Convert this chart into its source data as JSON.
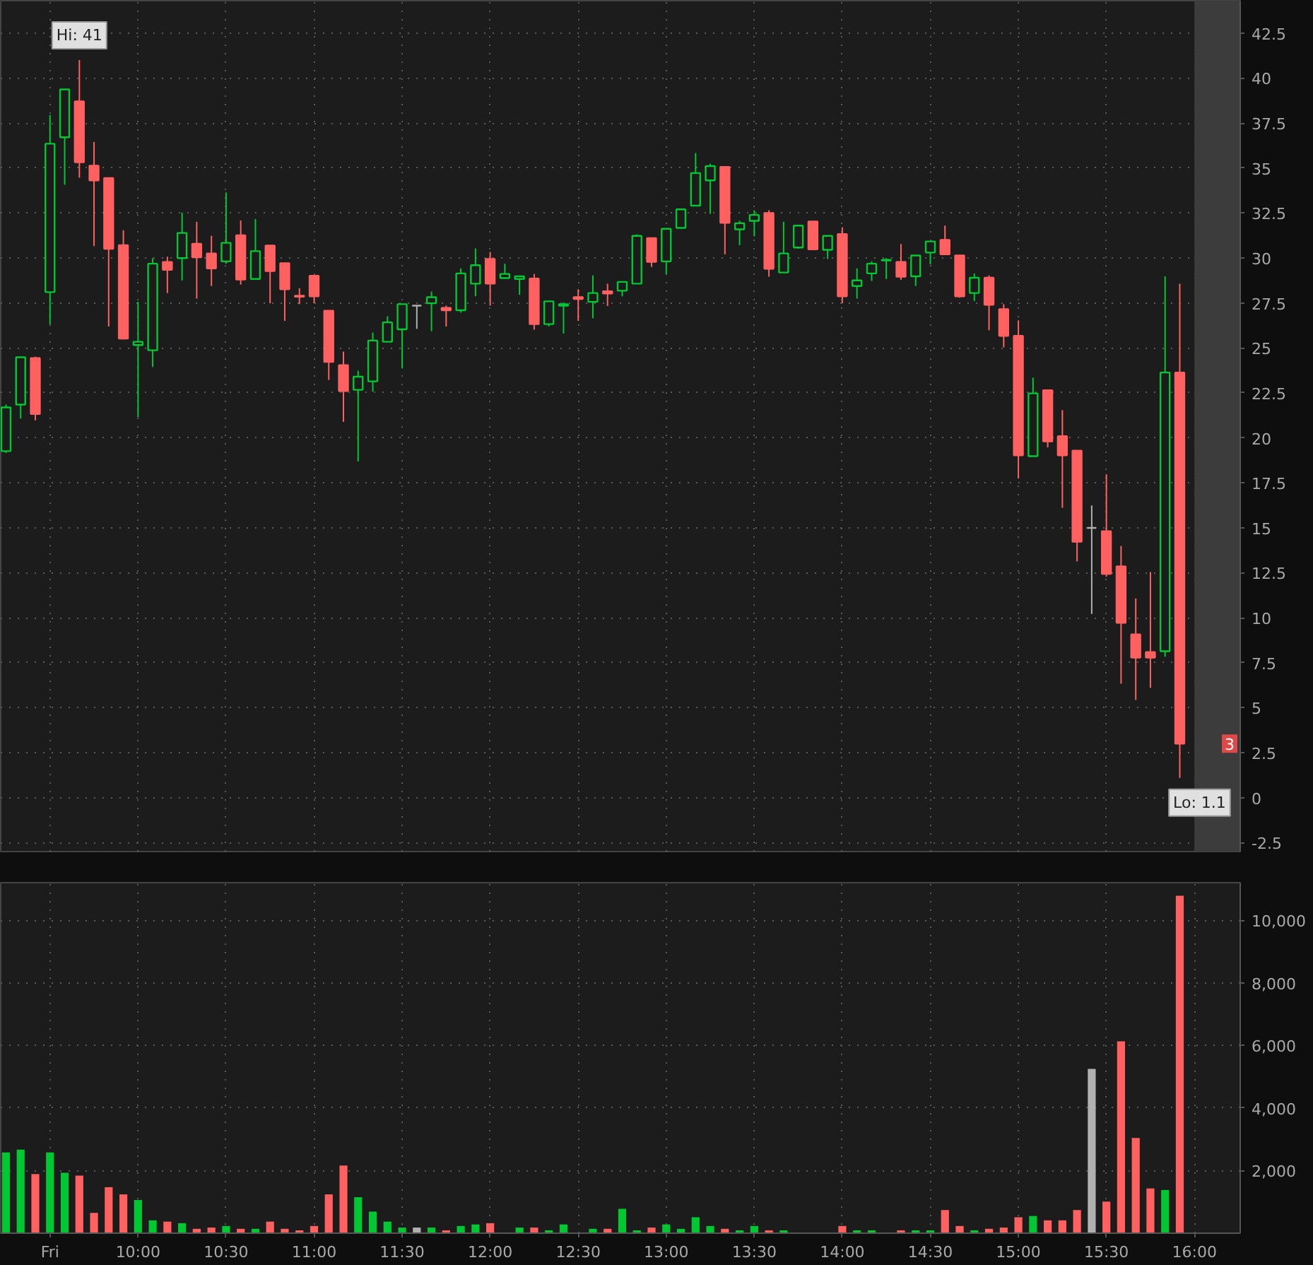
{
  "chart_data": [
    {
      "type": "candlestick",
      "x": [
        9.25,
        9.3333,
        9.4167,
        9.5,
        9.5833,
        9.6667,
        9.75,
        9.8333,
        9.9167,
        10,
        10.0833,
        10.1667,
        10.25,
        10.3333,
        10.4167,
        10.5,
        10.5833,
        10.6667,
        10.75,
        10.8333,
        10.9167,
        11,
        11.0833,
        11.1667,
        11.25,
        11.3333,
        11.4167,
        11.5,
        11.5833,
        11.6667,
        11.75,
        11.8333,
        11.9167,
        12,
        12.0833,
        12.1667,
        12.25,
        12.3333,
        12.4167,
        12.5,
        12.5833,
        12.6667,
        12.75,
        12.8333,
        12.9167,
        13,
        13.0833,
        13.1667,
        13.25,
        13.3333,
        13.4167,
        13.5,
        13.5833,
        13.6667,
        13.75,
        13.8333,
        13.9167,
        14,
        14.0833,
        14.1667,
        14.25,
        14.3333,
        14.4167,
        14.5,
        14.5833,
        14.6667,
        14.75,
        14.8333,
        14.9167,
        15,
        15.0833,
        15.1667,
        15.25,
        15.3333,
        15.4167,
        15.5,
        15.5833,
        15.6667,
        15.75,
        15.8333,
        15.9167
      ],
      "ohlc": [
        [
          19.26,
          21.85,
          19.16,
          21.69
        ],
        [
          21.85,
          24.48,
          21.07,
          24.48
        ],
        [
          24.43,
          24.51,
          20.97,
          21.33
        ],
        [
          28.1,
          37.95,
          26.32,
          36.35
        ],
        [
          36.71,
          39.37,
          34.07,
          39.37
        ],
        [
          38.7,
          41,
          34.46,
          35.32
        ],
        [
          35.13,
          36.45,
          30.66,
          34.31
        ],
        [
          34.44,
          34.44,
          26.19,
          30.51
        ],
        [
          30.71,
          31.54,
          25.47,
          25.52
        ],
        [
          25.16,
          27.56,
          21.15,
          25.34
        ],
        [
          24.87,
          29.99,
          23.94,
          29.68
        ],
        [
          29.78,
          30.07,
          28.05,
          29.34
        ],
        [
          29.99,
          32.52,
          28.75,
          31.39
        ],
        [
          30.79,
          32.01,
          27.74,
          30.04
        ],
        [
          30.25,
          31.23,
          28.44,
          29.42
        ],
        [
          29.81,
          33.64,
          29.68,
          30.84
        ],
        [
          31.26,
          32.08,
          28.52,
          28.8
        ],
        [
          28.83,
          32.16,
          28.83,
          30.38
        ],
        [
          30.69,
          30.69,
          27.48,
          29.27
        ],
        [
          29.71,
          29.71,
          26.5,
          28.26
        ],
        [
          27.9,
          28.31,
          27.43,
          27.85
        ],
        [
          29.01,
          29.01,
          27.48,
          27.87
        ],
        [
          27.07,
          27.07,
          23.22,
          24.22
        ],
        [
          24.04,
          24.79,
          20.89,
          22.6
        ],
        [
          22.67,
          23.73,
          18.69,
          23.4
        ],
        [
          23.14,
          25.85,
          22.57,
          25.41
        ],
        [
          25.34,
          26.76,
          25.34,
          26.42
        ],
        [
          26.03,
          27.43,
          23.86,
          27.43
        ],
        [
          27.35,
          27.35,
          26.06,
          27.35
        ],
        [
          27.48,
          28.13,
          25.93,
          27.82
        ],
        [
          27.22,
          27.35,
          26.19,
          27.09
        ],
        [
          27.09,
          29.42,
          26.96,
          29.14
        ],
        [
          28.57,
          30.53,
          27.87,
          29.6
        ],
        [
          29.94,
          30.33,
          27.35,
          28.57
        ],
        [
          28.88,
          29.68,
          28.88,
          29.11
        ],
        [
          28.83,
          28.98,
          27.95,
          28.98
        ],
        [
          28.85,
          29.11,
          26.01,
          26.32
        ],
        [
          26.32,
          27.59,
          26.19,
          27.59
        ],
        [
          27.35,
          27.53,
          25.8,
          27.43
        ],
        [
          27.82,
          28.26,
          26.5,
          27.72
        ],
        [
          27.56,
          29.03,
          26.65,
          28.05
        ],
        [
          28.15,
          28.57,
          27.33,
          28.02
        ],
        [
          28.18,
          28.67,
          27.87,
          28.67
        ],
        [
          28.57,
          31.31,
          28.57,
          31.23
        ],
        [
          31.1,
          31.1,
          29.5,
          29.78
        ],
        [
          29.81,
          31.62,
          29.11,
          31.62
        ],
        [
          31.67,
          32.7,
          31.67,
          32.7
        ],
        [
          32.91,
          35.83,
          32.91,
          34.72
        ],
        [
          34.31,
          35.24,
          32.45,
          35.11
        ],
        [
          35.06,
          35.06,
          30.2,
          31.95
        ],
        [
          31.59,
          32.06,
          30.71,
          31.93
        ],
        [
          32.06,
          32.65,
          31.2,
          32.39
        ],
        [
          32.5,
          32.65,
          28.96,
          29.4
        ],
        [
          29.19,
          32.01,
          29.19,
          30.25
        ],
        [
          30.58,
          31.8,
          30.51,
          31.8
        ],
        [
          32.03,
          32.03,
          30.48,
          30.48
        ],
        [
          30.45,
          31.23,
          29.94,
          31.23
        ],
        [
          31.33,
          31.7,
          27.48,
          27.87
        ],
        [
          28.44,
          29.42,
          27.74,
          28.75
        ],
        [
          29.14,
          29.81,
          28.72,
          29.68
        ],
        [
          29.86,
          29.99,
          28.83,
          29.89
        ],
        [
          29.78,
          30.77,
          28.78,
          28.96
        ],
        [
          28.98,
          30.14,
          28.44,
          30.14
        ],
        [
          30.3,
          30.92,
          29.65,
          30.92
        ],
        [
          31,
          31.8,
          30.2,
          30.2
        ],
        [
          30.14,
          30.14,
          27.79,
          27.87
        ],
        [
          28.05,
          29.14,
          27.61,
          28.9
        ],
        [
          28.9,
          29.03,
          25.98,
          27.4
        ],
        [
          27.15,
          27.43,
          25.03,
          25.67
        ],
        [
          25.67,
          26.53,
          17.74,
          19.03
        ],
        [
          18.98,
          23.35,
          18.98,
          22.47
        ],
        [
          22.65,
          22.65,
          19.47,
          19.8
        ],
        [
          20.09,
          21.54,
          16.11,
          19.03
        ],
        [
          19.29,
          19.29,
          13.13,
          14.22
        ],
        [
          14.99,
          16.24,
          10.21,
          14.99
        ],
        [
          14.81,
          17.97,
          12.28,
          12.44
        ],
        [
          12.85,
          13.99,
          6.33,
          9.72
        ],
        [
          9.07,
          11.07,
          5.43,
          7.78
        ],
        [
          8.09,
          12.54,
          6.1,
          7.78
        ],
        [
          8.14,
          28.98,
          7.83,
          23.63
        ],
        [
          23.63,
          28.57,
          1.1,
          3
        ]
      ],
      "colors": [
        "#00c832",
        "#00c832",
        "#ff6060",
        "#00c832",
        "#00c832",
        "#ff6060",
        "#ff6060",
        "#ff6060",
        "#ff6060",
        "#00c832",
        "#00c832",
        "#ff6060",
        "#00c832",
        "#ff6060",
        "#ff6060",
        "#00c832",
        "#ff6060",
        "#00c832",
        "#ff6060",
        "#ff6060",
        "#ff6060",
        "#ff6060",
        "#ff6060",
        "#ff6060",
        "#00c832",
        "#00c832",
        "#00c832",
        "#00c832",
        "#b0b0b0",
        "#00c832",
        "#ff6060",
        "#00c832",
        "#00c832",
        "#ff6060",
        "#00c832",
        "#00c832",
        "#ff6060",
        "#00c832",
        "#00c832",
        "#ff6060",
        "#00c832",
        "#ff6060",
        "#00c832",
        "#00c832",
        "#ff6060",
        "#00c832",
        "#00c832",
        "#00c832",
        "#00c832",
        "#ff6060",
        "#00c832",
        "#00c832",
        "#ff6060",
        "#00c832",
        "#00c832",
        "#ff6060",
        "#00c832",
        "#ff6060",
        "#00c832",
        "#00c832",
        "#00c832",
        "#ff6060",
        "#00c832",
        "#00c832",
        "#ff6060",
        "#ff6060",
        "#00c832",
        "#ff6060",
        "#ff6060",
        "#ff6060",
        "#00c832",
        "#ff6060",
        "#ff6060",
        "#ff6060",
        "#b0b0b0",
        "#ff6060",
        "#ff6060",
        "#ff6060",
        "#ff6060",
        "#00c832",
        "#ff6060"
      ],
      "xlim": [
        9.22,
        16.26
      ],
      "ylim": [
        -3,
        44.3
      ],
      "tick_labels": "y",
      "yticks": [
        -2.5,
        0,
        2.5,
        5,
        7.5,
        10,
        12.5,
        15,
        17.5,
        20,
        22.5,
        25,
        27.5,
        30,
        32.5,
        35,
        37.5,
        40,
        42.5
      ],
      "grid": true,
      "bands": [
        {
          "axis": "x",
          "from": 16,
          "to": 16.26,
          "color": "#3c3c3c"
        }
      ],
      "annotations": [
        {
          "text": "Hi: 41",
          "x": 9.6667,
          "y": 41
        },
        {
          "text": "Lo: 1.1",
          "x": 15.9167,
          "y": 1.1
        },
        {
          "text": "3",
          "y": 3
        }
      ]
    },
    {
      "type": "bar",
      "x": [
        9.25,
        9.3333,
        9.4167,
        9.5,
        9.5833,
        9.6667,
        9.75,
        9.8333,
        9.9167,
        10,
        10.0833,
        10.1667,
        10.25,
        10.3333,
        10.4167,
        10.5,
        10.5833,
        10.6667,
        10.75,
        10.8333,
        10.9167,
        11,
        11.0833,
        11.1667,
        11.25,
        11.3333,
        11.4167,
        11.5,
        11.5833,
        11.6667,
        11.75,
        11.8333,
        11.9167,
        12,
        12.0833,
        12.1667,
        12.25,
        12.3333,
        12.4167,
        12.5,
        12.5833,
        12.6667,
        12.75,
        12.8333,
        12.9167,
        13,
        13.0833,
        13.1667,
        13.25,
        13.3333,
        13.4167,
        13.5,
        13.5833,
        13.6667,
        13.75,
        13.8333,
        13.9167,
        14,
        14.0833,
        14.1667,
        14.25,
        14.3333,
        14.4167,
        14.5,
        14.5833,
        14.6667,
        14.75,
        14.8333,
        14.9167,
        15,
        15.0833,
        15.1667,
        15.25,
        15.3333,
        15.4167,
        15.5,
        15.5833,
        15.6667,
        15.75,
        15.8333,
        15.9167
      ],
      "values": [
        2580,
        2670,
        1890,
        2580,
        1930,
        1840,
        650,
        1470,
        1240,
        1060,
        410,
        370,
        320,
        140,
        180,
        230,
        140,
        140,
        370,
        140,
        90,
        230,
        1240,
        2160,
        1150,
        690,
        370,
        180,
        180,
        180,
        90,
        230,
        280,
        320,
        null,
        180,
        180,
        90,
        280,
        null,
        140,
        140,
        780,
        90,
        180,
        280,
        140,
        510,
        230,
        140,
        90,
        230,
        90,
        90,
        null,
        null,
        null,
        230,
        90,
        90,
        null,
        90,
        90,
        90,
        740,
        230,
        90,
        140,
        180,
        510,
        550,
        410,
        410,
        740,
        5250,
        1010,
        6130,
        3040,
        1430,
        1380,
        10780
      ],
      "colors": [
        "#00c832",
        "#00c832",
        "#ff6060",
        "#00c832",
        "#00c832",
        "#ff6060",
        "#ff6060",
        "#ff6060",
        "#ff6060",
        "#00c832",
        "#00c832",
        "#ff6060",
        "#00c832",
        "#ff6060",
        "#ff6060",
        "#00c832",
        "#ff6060",
        "#00c832",
        "#ff6060",
        "#ff6060",
        "#ff6060",
        "#ff6060",
        "#ff6060",
        "#ff6060",
        "#00c832",
        "#00c832",
        "#00c832",
        "#00c832",
        "#b0b0b0",
        "#00c832",
        "#ff6060",
        "#00c832",
        "#00c832",
        "#ff6060",
        "#00c832",
        "#00c832",
        "#ff6060",
        "#00c832",
        "#00c832",
        "#ff6060",
        "#00c832",
        "#ff6060",
        "#00c832",
        "#00c832",
        "#ff6060",
        "#00c832",
        "#00c832",
        "#00c832",
        "#00c832",
        "#ff6060",
        "#00c832",
        "#00c832",
        "#ff6060",
        "#00c832",
        "#00c832",
        "#ff6060",
        "#00c832",
        "#ff6060",
        "#00c832",
        "#00c832",
        "#00c832",
        "#ff6060",
        "#00c832",
        "#00c832",
        "#ff6060",
        "#ff6060",
        "#00c832",
        "#ff6060",
        "#ff6060",
        "#ff6060",
        "#00c832",
        "#ff6060",
        "#ff6060",
        "#ff6060",
        "#b0b0b0",
        "#ff6060",
        "#ff6060",
        "#ff6060",
        "#ff6060",
        "#00c832",
        "#ff6060"
      ],
      "xlim": [
        9.22,
        16.26
      ],
      "xticks": [
        {
          "value": 9.5,
          "label": "Fri"
        },
        {
          "value": 10,
          "label": "10:00"
        },
        {
          "value": 10.5,
          "label": "10:30"
        },
        {
          "value": 11,
          "label": "11:00"
        },
        {
          "value": 11.5,
          "label": "11:30"
        },
        {
          "value": 12,
          "label": "12:00"
        },
        {
          "value": 12.5,
          "label": "12:30"
        },
        {
          "value": 13,
          "label": "13:00"
        },
        {
          "value": 13.5,
          "label": "13:30"
        },
        {
          "value": 14,
          "label": "14:00"
        },
        {
          "value": 14.5,
          "label": "14:30"
        },
        {
          "value": 15,
          "label": "15:00"
        },
        {
          "value": 15.5,
          "label": "15:30"
        },
        {
          "value": 16,
          "label": "16:00"
        }
      ],
      "ylim": [
        0,
        11200
      ],
      "yticks": [
        {
          "value": 2000,
          "label": "2,000"
        },
        {
          "value": 4000,
          "label": "4,000"
        },
        {
          "value": 6000,
          "label": "6,000"
        },
        {
          "value": 8000,
          "label": "8,000"
        },
        {
          "value": 10000,
          "label": "10,000"
        }
      ],
      "grid": true
    }
  ]
}
